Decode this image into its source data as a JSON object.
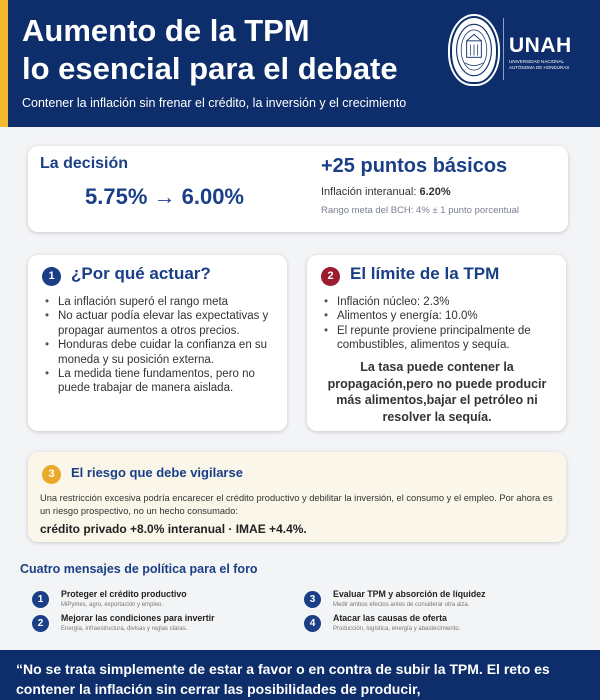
{
  "header": {
    "title_line1": "Aumento de la TPM",
    "title_line2": "lo esencial para el debate",
    "subtitle": "Contener la inflación sin frenar el crédito, la inversión y el crecimiento",
    "logo": "UNAH",
    "logo_sub": "UNIVERSIDAD NACIONAL AUTÓNOMA DE HONDURAS",
    "colors": {
      "navy": "#0d2e6b",
      "accent": "#f2b82e"
    }
  },
  "decision": {
    "label": "La decisión",
    "rate_change": "5.75% → 6.00%",
    "basis_points": "+25 puntos básicos",
    "inflation_label": "Inflación interanual: ",
    "inflation_value": "6.20%",
    "target_range": "Rango meta del BCH: 4% ± 1 punto porcentual"
  },
  "why": {
    "number": "1",
    "title": "¿Por qué actuar?",
    "bullets": [
      "La inflación superó el rango meta",
      "No actuar podía elevar las expectativas y propagar aumentos a otros precios.",
      "Honduras debe cuidar la confianza en su moneda y su posición externa.",
      "La medida tiene fundamentos, pero no puede trabajar de manera aislada."
    ]
  },
  "limit": {
    "number": "2",
    "title": "El límite de la TPM",
    "bullets": [
      "Inflación núcleo: 2.3%",
      "Alimentos y energía: 10.0%",
      "El repunte proviene principalmente de combustibles, alimentos y sequía."
    ],
    "note": "La tasa puede contener la propagación,pero no puede producir más alimentos,bajar el petróleo ni resolver la sequía."
  },
  "risk": {
    "number": "3",
    "title": "El riesgo que debe vigilarse",
    "text": "Una restricción excesiva podría encarecer el crédito productivo y debilitar la inversión, el consumo y el empleo. Por ahora es un riesgo prospectivo, no un hecho consumado:",
    "stats": "crédito privado +8.0% interanual · IMAE +4.4%."
  },
  "messages": {
    "title": "Cuatro mensajes de política para el foro",
    "items": [
      {
        "number": "1",
        "title": "Proteger el crédito productivo",
        "desc": "MiPymes, agro, exportación y empleo."
      },
      {
        "number": "2",
        "title": "Mejorar las condiciones para invertir",
        "desc": "Energía, infraestructura, divisas y reglas claras."
      },
      {
        "number": "3",
        "title": "Evaluar TPM y absorción de liquidez",
        "desc": "Medir ambos efectos antes de considerar otra alza."
      },
      {
        "number": "4",
        "title": "Atacar las causas de oferta",
        "desc": "Producción, logística, energía y abastecimiento."
      }
    ]
  },
  "footer": {
    "quote": "“No se trata simplemente de estar a favor o en contra de subir la TPM. El reto es contener la inflación sin cerrar las posibilidades de producir,"
  }
}
